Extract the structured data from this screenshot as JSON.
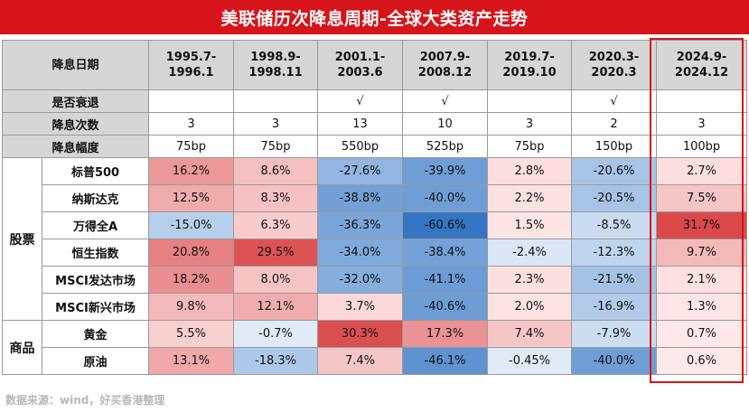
{
  "title": "美联储历次降息周期-全球大类资产走势",
  "header": {
    "row_label": "降息日期",
    "periods": [
      [
        "1995.7-",
        "1996.1"
      ],
      [
        "1998.9-",
        "1998.11"
      ],
      [
        "2001.1-",
        "2003.6"
      ],
      [
        "2007.9-",
        "2008.12"
      ],
      [
        "2019.7-",
        "2019.10"
      ],
      [
        "2020.3-",
        "2020.3"
      ],
      [
        "2024.9-",
        "2024.12"
      ]
    ]
  },
  "plain_rows": [
    {
      "label": "是否衰退",
      "values": [
        "",
        "",
        "√",
        "√",
        "",
        "√",
        ""
      ]
    },
    {
      "label": "降息次数",
      "values": [
        "3",
        "3",
        "13",
        "10",
        "3",
        "2",
        "3"
      ]
    },
    {
      "label": "降息幅度",
      "values": [
        "75bp",
        "75bp",
        "550bp",
        "525bp",
        "75bp",
        "150bp",
        "100bp"
      ]
    }
  ],
  "groups": [
    {
      "name": "股票",
      "assets": [
        {
          "name": "标普500",
          "values": [
            16.2,
            8.6,
            -27.6,
            -39.9,
            2.8,
            -20.6,
            2.7
          ],
          "display": [
            "16.2%",
            "8.6%",
            "-27.6%",
            "-39.9%",
            "2.8%",
            "-20.6%",
            "2.7%"
          ]
        },
        {
          "name": "纳斯达克",
          "values": [
            12.5,
            8.3,
            -38.8,
            -40.0,
            2.2,
            -20.5,
            7.5
          ],
          "display": [
            "12.5%",
            "8.3%",
            "-38.8%",
            "-40.0%",
            "2.2%",
            "-20.5%",
            "7.5%"
          ]
        },
        {
          "name": "万得全A",
          "values": [
            -15.0,
            6.3,
            -36.3,
            -60.6,
            1.5,
            -8.5,
            31.7
          ],
          "display": [
            "-15.0%",
            "6.3%",
            "-36.3%",
            "-60.6%",
            "1.5%",
            "-8.5%",
            "31.7%"
          ]
        },
        {
          "name": "恒生指数",
          "values": [
            20.8,
            29.5,
            -34.0,
            -38.4,
            -2.4,
            -12.3,
            9.7
          ],
          "display": [
            "20.8%",
            "29.5%",
            "-34.0%",
            "-38.4%",
            "-2.4%",
            "-12.3%",
            "9.7%"
          ]
        },
        {
          "name": "MSCI发达市场",
          "values": [
            18.2,
            8.0,
            -32.0,
            -41.1,
            2.3,
            -21.5,
            2.1
          ],
          "display": [
            "18.2%",
            "8.0%",
            "-32.0%",
            "-41.1%",
            "2.3%",
            "-21.5%",
            "2.1%"
          ]
        },
        {
          "name": "MSCI新兴市场",
          "values": [
            9.8,
            12.1,
            3.7,
            -40.6,
            2.0,
            -16.9,
            1.3
          ],
          "display": [
            "9.8%",
            "12.1%",
            "3.7%",
            "-40.6%",
            "2.0%",
            "-16.9%",
            "1.3%"
          ]
        }
      ]
    },
    {
      "name": "商品",
      "assets": [
        {
          "name": "黄金",
          "values": [
            5.5,
            -0.7,
            30.3,
            17.3,
            7.4,
            -7.9,
            0.7
          ],
          "display": [
            "5.5%",
            "-0.7%",
            "30.3%",
            "17.3%",
            "7.4%",
            "-7.9%",
            "0.7%"
          ]
        },
        {
          "name": "原油",
          "values": [
            13.1,
            -18.3,
            7.4,
            -46.1,
            -0.45,
            -40.0,
            0.6
          ],
          "display": [
            "13.1%",
            "-18.3%",
            "7.4%",
            "-46.1%",
            "-0.45%",
            "-40.0%",
            "0.6%"
          ]
        }
      ]
    }
  ],
  "colors": {
    "title_bg": "#d7141a",
    "highlight_border": "#d7141a",
    "header_bg": "#d6d6d6"
  },
  "source": "数据来源：wind，好买香港整理"
}
